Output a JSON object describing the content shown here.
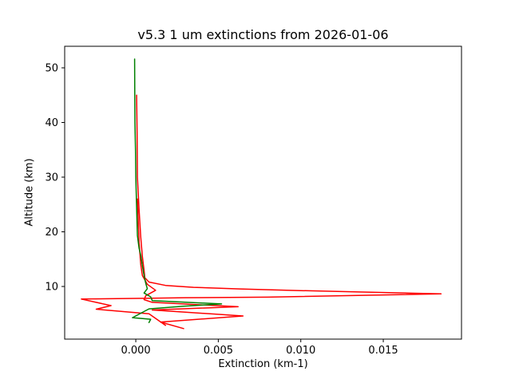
{
  "figure": {
    "background": "#ffffff",
    "frame_color": "#000000",
    "text_color": "#000000"
  },
  "chart_data": {
    "type": "line",
    "title": "v5.3 1 um extinctions from 2026-01-06",
    "xlabel": "Extinction (km-1)",
    "ylabel": "Altitude (km)",
    "xlim": [
      -0.00431,
      0.01974
    ],
    "ylim": [
      0.37,
      53.94
    ],
    "grid": false,
    "legend": "none",
    "xticks": {
      "values": [
        0.0,
        0.005,
        0.01,
        0.015
      ],
      "labels": [
        "0.000",
        "0.005",
        "0.010",
        "0.015"
      ]
    },
    "yticks": {
      "values": [
        10,
        20,
        30,
        40,
        50
      ],
      "labels": [
        "10",
        "20",
        "30",
        "40",
        "50"
      ]
    },
    "colors": {
      "red": "#ff0000",
      "green": "#008000"
    },
    "series": [
      {
        "name": "red-extinction-profile-1",
        "color": "#ff0000",
        "points": [
          [
            5e-05,
            45.0
          ],
          [
            8e-05,
            38.0
          ],
          [
            0.0001,
            30.0
          ],
          [
            0.0002,
            24.0
          ],
          [
            0.0003,
            19.0
          ],
          [
            0.0004,
            15.5
          ],
          [
            0.0005,
            13.0
          ],
          [
            0.00055,
            11.6
          ],
          [
            0.0008,
            10.8
          ],
          [
            0.0018,
            10.2
          ],
          [
            0.0035,
            9.85
          ],
          [
            0.0063,
            9.55
          ],
          [
            0.01,
            9.25
          ],
          [
            0.0135,
            9.0
          ],
          [
            0.0185,
            8.65
          ],
          [
            0.008,
            8.05
          ],
          [
            0.003,
            7.95
          ],
          [
            0.0009,
            7.85
          ],
          [
            -0.0033,
            7.7
          ],
          [
            -0.0015,
            6.5
          ],
          [
            -0.0024,
            5.85
          ],
          [
            0.0008,
            5.0
          ],
          [
            0.0018,
            2.9
          ]
        ]
      },
      {
        "name": "red-extinction-profile-2",
        "color": "#ff0000",
        "points": [
          [
            0.0001,
            26.0
          ],
          [
            0.0002,
            18.0
          ],
          [
            0.0003,
            14.0
          ],
          [
            0.0004,
            12.0
          ],
          [
            0.0007,
            10.4
          ],
          [
            0.0012,
            9.3
          ],
          [
            0.0006,
            8.3
          ],
          [
            0.0005,
            7.6
          ],
          [
            0.001,
            7.1
          ],
          [
            0.0062,
            6.3
          ],
          [
            0.001,
            5.7
          ],
          [
            0.0065,
            4.6
          ],
          [
            0.0015,
            3.5
          ],
          [
            0.0029,
            2.3
          ]
        ]
      },
      {
        "name": "green-extinction-profile",
        "color": "#008000",
        "points": [
          [
            -7e-05,
            51.6
          ],
          [
            -6e-05,
            45.0
          ],
          [
            -5e-05,
            40.0
          ],
          [
            -2e-05,
            35.0
          ],
          [
            0.0,
            30.0
          ],
          [
            5e-05,
            24.5
          ],
          [
            0.0001,
            19.3
          ],
          [
            0.0002,
            17.0
          ],
          [
            0.0003,
            15.7
          ],
          [
            0.0004,
            13.8
          ],
          [
            0.0005,
            12.0
          ],
          [
            0.0006,
            10.6
          ],
          [
            0.0007,
            9.6
          ],
          [
            0.0005,
            8.8
          ],
          [
            0.0009,
            8.1
          ],
          [
            0.001,
            7.4
          ],
          [
            0.0052,
            6.8
          ],
          [
            0.0029,
            6.4
          ],
          [
            0.0008,
            5.9
          ],
          [
            -0.0002,
            4.3
          ],
          [
            0.0009,
            4.0
          ],
          [
            0.0008,
            3.4
          ]
        ]
      }
    ]
  }
}
